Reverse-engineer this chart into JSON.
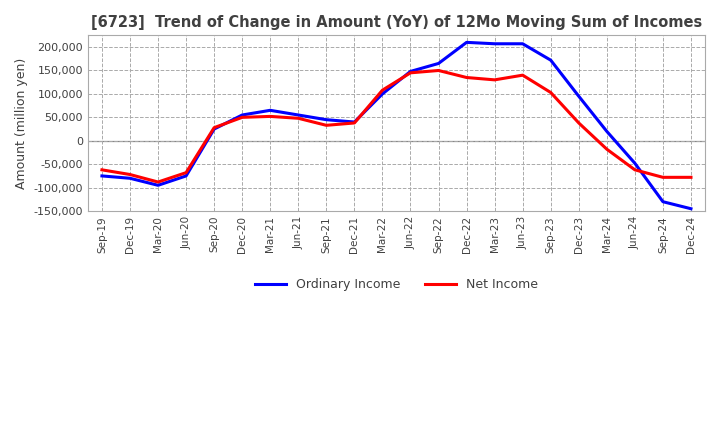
{
  "title": "[6723]  Trend of Change in Amount (YoY) of 12Mo Moving Sum of Incomes",
  "ylabel": "Amount (million yen)",
  "ylim": [
    -150000,
    225000
  ],
  "yticks": [
    -150000,
    -100000,
    -50000,
    0,
    50000,
    100000,
    150000,
    200000
  ],
  "x_labels": [
    "Sep-19",
    "Dec-19",
    "Mar-20",
    "Jun-20",
    "Sep-20",
    "Dec-20",
    "Mar-21",
    "Jun-21",
    "Sep-21",
    "Dec-21",
    "Mar-22",
    "Jun-22",
    "Sep-22",
    "Dec-22",
    "Mar-23",
    "Jun-23",
    "Sep-23",
    "Dec-23",
    "Mar-24",
    "Jun-24",
    "Sep-24",
    "Dec-24"
  ],
  "ordinary_income": [
    -75000,
    -80000,
    -95000,
    -75000,
    25000,
    55000,
    65000,
    55000,
    45000,
    40000,
    100000,
    148000,
    165000,
    210000,
    207000,
    207000,
    172000,
    95000,
    20000,
    -48000,
    -130000,
    -145000
  ],
  "net_income": [
    -62000,
    -72000,
    -88000,
    -68000,
    28000,
    50000,
    52000,
    48000,
    33000,
    38000,
    108000,
    145000,
    150000,
    135000,
    130000,
    140000,
    103000,
    38000,
    -18000,
    -62000,
    -78000,
    -78000
  ],
  "ordinary_color": "#0000ff",
  "net_color": "#ff0000",
  "background_color": "#ffffff",
  "grid_color": "#aaaaaa",
  "title_color": "#404040",
  "line_width": 2.2,
  "legend_labels": [
    "Ordinary Income",
    "Net Income"
  ]
}
